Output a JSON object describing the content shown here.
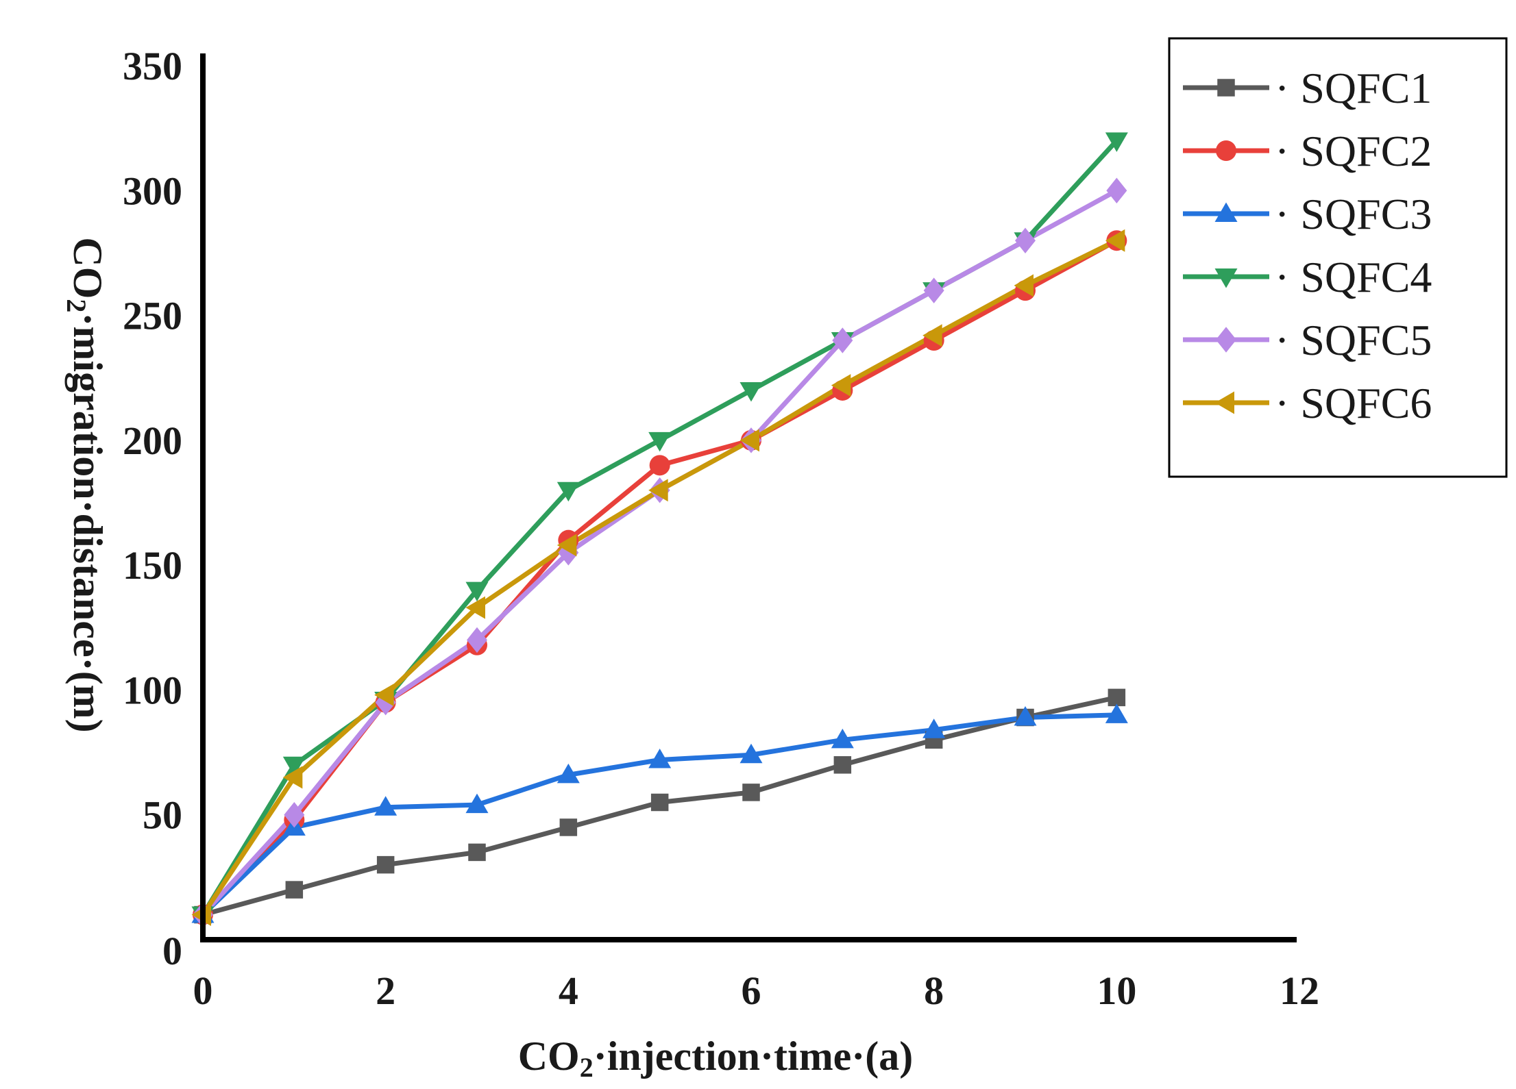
{
  "chart_data": {
    "type": "line",
    "title": "",
    "xlabel": {
      "prefix": "CO",
      "sub": "2",
      "suffix": "·injection·time·(a)"
    },
    "ylabel": {
      "prefix": "CO",
      "sub": "2",
      "suffix": "·migration·distance·(m)"
    },
    "xlim": [
      0,
      12
    ],
    "ylim": [
      0,
      350
    ],
    "x_ticks": [
      "0",
      "2",
      "4",
      "6",
      "8",
      "10",
      "12"
    ],
    "y_ticks": [
      "0",
      "50",
      "100",
      "150",
      "200",
      "250",
      "300",
      "350"
    ],
    "grid": false,
    "legend_position": "top-right",
    "x": [
      0,
      1,
      2,
      3,
      4,
      5,
      6,
      7,
      8,
      9,
      10
    ],
    "series": [
      {
        "name": "SQFC1",
        "legend_label": "· SQFC1",
        "color": "#595959",
        "marker": "square",
        "values": [
          10,
          20,
          30,
          35,
          45,
          55,
          59,
          70,
          80,
          89,
          97
        ]
      },
      {
        "name": "SQFC2",
        "legend_label": "· SQFC2",
        "color": "#e8403a",
        "marker": "circle",
        "values": [
          10,
          48,
          95,
          118,
          160,
          190,
          200,
          220,
          240,
          260,
          280
        ]
      },
      {
        "name": "SQFC3",
        "legend_label": "· SQFC3",
        "color": "#2473dd",
        "marker": "triangle-up",
        "values": [
          10,
          45,
          53,
          54,
          66,
          72,
          74,
          80,
          84,
          89,
          90
        ]
      },
      {
        "name": "SQFC4",
        "legend_label": "· SQFC4",
        "color": "#2e9e5b",
        "marker": "triangle-down",
        "values": [
          10,
          70,
          96,
          140,
          180,
          200,
          220,
          240,
          260,
          280,
          320
        ]
      },
      {
        "name": "SQFC5",
        "legend_label": "· SQFC5",
        "color": "#b889e6",
        "marker": "diamond",
        "values": [
          10,
          50,
          95,
          120,
          155,
          180,
          200,
          240,
          260,
          280,
          300
        ]
      },
      {
        "name": "SQFC6",
        "legend_label": "· SQFC6",
        "color": "#c9980a",
        "marker": "triangle-left",
        "values": [
          10,
          65,
          98,
          133,
          158,
          180,
          200,
          222,
          242,
          262,
          280
        ]
      }
    ]
  }
}
